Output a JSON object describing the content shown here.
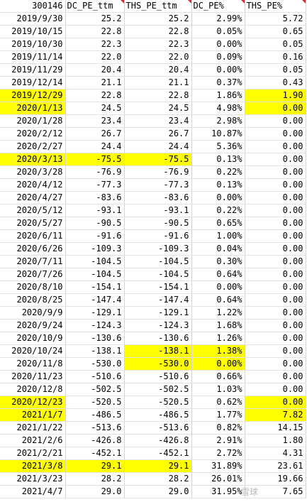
{
  "headers": [
    "300146",
    "DC_PE_ttm",
    "THS_PE_ttm",
    "DC_PE%",
    "THS_PE%"
  ],
  "highlight_color": "#ffff00",
  "rows": [
    {
      "cells": [
        "2019/9/30",
        "25.2",
        "25.2",
        "2.99%",
        "5.72"
      ],
      "hl": []
    },
    {
      "cells": [
        "2019/10/15",
        "22.8",
        "22.8",
        "0.05%",
        "0.65"
      ],
      "hl": []
    },
    {
      "cells": [
        "2019/10/30",
        "22.3",
        "22.3",
        "0.00%",
        "0.05"
      ],
      "hl": []
    },
    {
      "cells": [
        "2019/11/14",
        "22.0",
        "22.0",
        "0.09%",
        "0.16"
      ],
      "hl": []
    },
    {
      "cells": [
        "2019/11/29",
        "20.4",
        "20.4",
        "0.00%",
        "0.05"
      ],
      "hl": []
    },
    {
      "cells": [
        "2019/12/14",
        "21.1",
        "21.1",
        "0.37%",
        "0.43"
      ],
      "hl": []
    },
    {
      "cells": [
        "2019/12/29",
        "22.8",
        "22.8",
        "1.86%",
        "1.90"
      ],
      "hl": [
        0,
        4
      ]
    },
    {
      "cells": [
        "2020/1/13",
        "24.5",
        "24.5",
        "4.98%",
        "0.00"
      ],
      "hl": [
        0,
        4
      ]
    },
    {
      "cells": [
        "2020/1/28",
        "23.4",
        "23.4",
        "2.98%",
        "0.00"
      ],
      "hl": []
    },
    {
      "cells": [
        "2020/2/12",
        "26.7",
        "26.7",
        "10.87%",
        "0.00"
      ],
      "hl": []
    },
    {
      "cells": [
        "2020/2/27",
        "24.4",
        "24.4",
        "5.36%",
        "0.00"
      ],
      "hl": []
    },
    {
      "cells": [
        "2020/3/13",
        "-75.5",
        "-75.5",
        "0.13%",
        "0.00"
      ],
      "hl": [
        0,
        1,
        2
      ]
    },
    {
      "cells": [
        "2020/3/28",
        "-76.9",
        "-76.9",
        "0.22%",
        "0.00"
      ],
      "hl": []
    },
    {
      "cells": [
        "2020/4/12",
        "-77.3",
        "-77.3",
        "0.13%",
        "0.00"
      ],
      "hl": []
    },
    {
      "cells": [
        "2020/4/27",
        "-83.6",
        "-83.6",
        "0.00%",
        "0.00"
      ],
      "hl": []
    },
    {
      "cells": [
        "2020/5/12",
        "-93.1",
        "-93.1",
        "0.22%",
        "0.00"
      ],
      "hl": []
    },
    {
      "cells": [
        "2020/5/27",
        "-90.5",
        "-90.5",
        "0.65%",
        "0.00"
      ],
      "hl": []
    },
    {
      "cells": [
        "2020/6/11",
        "-91.6",
        "-91.6",
        "1.00%",
        "0.00"
      ],
      "hl": []
    },
    {
      "cells": [
        "2020/6/26",
        "-109.3",
        "-109.3",
        "0.04%",
        "0.00"
      ],
      "hl": []
    },
    {
      "cells": [
        "2020/7/11",
        "-104.5",
        "-104.5",
        "0.30%",
        "0.00"
      ],
      "hl": []
    },
    {
      "cells": [
        "2020/7/26",
        "-104.5",
        "-104.5",
        "0.64%",
        "0.00"
      ],
      "hl": []
    },
    {
      "cells": [
        "2020/8/10",
        "-154.1",
        "-154.1",
        "0.00%",
        "0.00"
      ],
      "hl": []
    },
    {
      "cells": [
        "2020/8/25",
        "-147.4",
        "-147.4",
        "0.64%",
        "0.00"
      ],
      "hl": []
    },
    {
      "cells": [
        "2020/9/9",
        "-129.1",
        "-129.1",
        "1.22%",
        "0.00"
      ],
      "hl": []
    },
    {
      "cells": [
        "2020/9/24",
        "-124.3",
        "-124.3",
        "1.68%",
        "0.00"
      ],
      "hl": []
    },
    {
      "cells": [
        "2020/10/9",
        "-130.6",
        "-130.6",
        "1.26%",
        "0.00"
      ],
      "hl": []
    },
    {
      "cells": [
        "2020/10/24",
        "-138.1",
        "-138.1",
        "1.38%",
        "0.00"
      ],
      "hl": [
        2,
        3
      ]
    },
    {
      "cells": [
        "2020/11/8",
        "-530.0",
        "-530.0",
        "0.00%",
        "0.00"
      ],
      "hl": [
        2,
        3
      ]
    },
    {
      "cells": [
        "2020/11/23",
        "-510.6",
        "-510.6",
        "0.66%",
        "0.00"
      ],
      "hl": []
    },
    {
      "cells": [
        "2020/12/8",
        "-502.5",
        "-502.5",
        "1.03%",
        "0.00"
      ],
      "hl": []
    },
    {
      "cells": [
        "2020/12/23",
        "-520.5",
        "-520.5",
        "0.62%",
        "0.00"
      ],
      "hl": [
        0,
        4
      ]
    },
    {
      "cells": [
        "2021/1/7",
        "-486.5",
        "-486.5",
        "1.77%",
        "7.82"
      ],
      "hl": [
        0,
        4
      ]
    },
    {
      "cells": [
        "2021/1/22",
        "-513.6",
        "-513.6",
        "0.82%",
        "14.15"
      ],
      "hl": []
    },
    {
      "cells": [
        "2021/2/6",
        "-426.8",
        "-426.8",
        "2.91%",
        "1.80"
      ],
      "hl": []
    },
    {
      "cells": [
        "2021/2/21",
        "-452.1",
        "-452.1",
        "2.72%",
        "4.31"
      ],
      "hl": []
    },
    {
      "cells": [
        "2021/3/8",
        "29.1",
        "29.1",
        "31.89%",
        "23.61"
      ],
      "hl": [
        0,
        1,
        2
      ]
    },
    {
      "cells": [
        "2021/3/23",
        "28.2",
        "28.2",
        "26.01%",
        "19.66"
      ],
      "hl": []
    },
    {
      "cells": [
        "2021/4/7",
        "29.0",
        "29.0",
        "31.95%",
        "7.65"
      ],
      "hl": []
    }
  ],
  "watermark": "雪球"
}
